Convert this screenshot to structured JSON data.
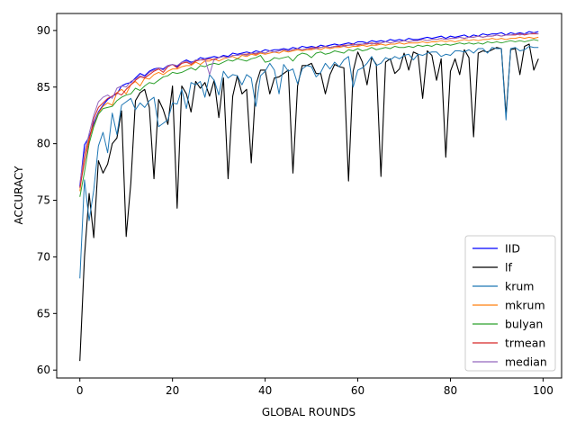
{
  "chart_data": {
    "type": "line",
    "xlabel": "GLOBAL ROUNDS",
    "ylabel": "ACCURACY",
    "xlim": [
      -5,
      104
    ],
    "ylim": [
      59.3,
      91.5
    ],
    "xticks": [
      0,
      20,
      40,
      60,
      80,
      100
    ],
    "yticks": [
      60,
      65,
      70,
      75,
      80,
      85,
      90
    ],
    "grid": false,
    "legend_position": "lower-right",
    "series": [
      {
        "name": "IID",
        "color": "#0000ff",
        "width": 1.1,
        "values": [
          76.2,
          79.9,
          80.6,
          81.8,
          82.8,
          83.4,
          83.9,
          84.2,
          84.4,
          85.1,
          85.3,
          85.4,
          85.8,
          86.2,
          86.0,
          86.4,
          86.6,
          86.7,
          86.6,
          86.9,
          87.0,
          86.8,
          87.2,
          87.4,
          87.2,
          87.3,
          87.6,
          87.5,
          87.6,
          87.7,
          87.6,
          87.8,
          87.7,
          88.0,
          87.9,
          88.0,
          88.1,
          88.0,
          88.2,
          88.1,
          88.3,
          88.2,
          88.3,
          88.3,
          88.4,
          88.3,
          88.5,
          88.4,
          88.6,
          88.5,
          88.6,
          88.5,
          88.7,
          88.6,
          88.7,
          88.8,
          88.7,
          88.8,
          88.9,
          88.8,
          89.0,
          89.0,
          88.9,
          89.1,
          89.0,
          89.1,
          89.0,
          89.2,
          89.1,
          89.2,
          89.1,
          89.3,
          89.2,
          89.2,
          89.3,
          89.4,
          89.3,
          89.4,
          89.5,
          89.3,
          89.5,
          89.4,
          89.5,
          89.6,
          89.4,
          89.6,
          89.5,
          89.7,
          89.6,
          89.7,
          89.7,
          89.8,
          89.6,
          89.8,
          89.7,
          89.8,
          89.7,
          89.9,
          89.8,
          89.9
        ]
      },
      {
        "name": "lf",
        "color": "#000000",
        "width": 1.1,
        "values": [
          60.8,
          70.0,
          75.6,
          71.7,
          78.5,
          77.4,
          78.2,
          80.0,
          80.5,
          82.9,
          71.8,
          76.5,
          83.8,
          84.5,
          84.8,
          83.2,
          76.9,
          83.9,
          83.0,
          81.7,
          85.1,
          74.3,
          85.1,
          84.4,
          82.8,
          85.5,
          84.9,
          85.4,
          84.2,
          85.6,
          82.3,
          85.8,
          76.9,
          84.2,
          86.0,
          84.4,
          84.8,
          78.3,
          85.2,
          86.5,
          86.5,
          84.4,
          85.8,
          85.9,
          86.2,
          86.5,
          77.4,
          85.1,
          86.9,
          86.9,
          87.1,
          86.2,
          86.2,
          84.4,
          86.1,
          87.0,
          86.8,
          86.7,
          76.7,
          86.4,
          88.1,
          87.2,
          85.2,
          87.6,
          87.0,
          77.1,
          87.2,
          87.5,
          86.2,
          86.6,
          88.0,
          86.5,
          88.1,
          87.9,
          84.0,
          88.2,
          87.8,
          85.6,
          87.5,
          78.8,
          86.4,
          87.5,
          86.1,
          88.3,
          87.6,
          80.6,
          88.0,
          88.2,
          88.1,
          88.3,
          88.5,
          88.4,
          82.5,
          88.3,
          88.4,
          86.1,
          88.6,
          88.8,
          86.5,
          87.5
        ]
      },
      {
        "name": "krum",
        "color": "#1f77b4",
        "width": 1.0,
        "values": [
          68.1,
          76.8,
          73.2,
          75.9,
          79.8,
          81.0,
          79.2,
          82.7,
          80.8,
          83.4,
          83.7,
          84.0,
          83.0,
          83.6,
          83.2,
          83.8,
          84.1,
          81.5,
          81.8,
          82.1,
          83.6,
          83.5,
          84.8,
          83.1,
          85.4,
          85.2,
          85.5,
          84.1,
          86.1,
          85.6,
          84.3,
          86.4,
          85.8,
          86.1,
          86.0,
          85.2,
          86.1,
          85.8,
          83.3,
          86.0,
          86.4,
          87.1,
          86.5,
          84.4,
          87.0,
          86.4,
          86.6,
          85.3,
          86.6,
          86.9,
          86.8,
          85.9,
          86.3,
          87.1,
          86.6,
          87.2,
          86.8,
          87.4,
          87.7,
          85.0,
          86.5,
          86.7,
          87.1,
          87.7,
          86.9,
          87.1,
          87.6,
          87.4,
          87.7,
          87.5,
          87.8,
          87.9,
          87.4,
          87.9,
          87.8,
          88.0,
          88.1,
          88.1,
          87.7,
          87.9,
          87.8,
          88.2,
          88.2,
          88.1,
          88.3,
          88.0,
          88.4,
          88.4,
          88.0,
          88.5,
          88.4,
          88.4,
          82.1,
          88.4,
          88.5,
          88.2,
          88.3,
          88.6,
          88.5,
          88.5
        ]
      },
      {
        "name": "mkrum",
        "color": "#ff7f0e",
        "width": 1.0,
        "values": [
          75.8,
          79.0,
          80.5,
          81.6,
          82.7,
          83.3,
          83.6,
          83.4,
          84.5,
          84.8,
          84.4,
          85.2,
          85.5,
          85.1,
          85.8,
          85.7,
          86.1,
          86.3,
          86.1,
          86.4,
          86.6,
          86.6,
          86.8,
          86.9,
          86.9,
          87.2,
          87.0,
          87.3,
          87.3,
          87.5,
          87.3,
          87.5,
          87.6,
          87.7,
          87.5,
          87.8,
          87.7,
          87.9,
          87.8,
          88.0,
          87.9,
          88.0,
          88.1,
          88.0,
          88.2,
          88.1,
          88.2,
          88.3,
          88.2,
          88.3,
          88.3,
          88.4,
          88.3,
          88.5,
          88.4,
          88.5,
          88.5,
          88.6,
          88.5,
          88.6,
          88.6,
          88.7,
          88.6,
          88.7,
          88.7,
          88.8,
          88.7,
          88.8,
          88.8,
          88.9,
          88.8,
          88.9,
          88.9,
          88.9,
          89.0,
          88.9,
          89.0,
          89.0,
          89.1,
          89.0,
          89.1,
          89.0,
          89.1,
          89.2,
          89.1,
          89.2,
          89.1,
          89.2,
          89.2,
          89.3,
          89.2,
          89.3,
          89.2,
          89.3,
          89.3,
          89.4,
          89.3,
          89.4,
          89.3,
          89.4
        ]
      },
      {
        "name": "bulyan",
        "color": "#2ca02c",
        "width": 1.0,
        "values": [
          75.3,
          77.5,
          80.0,
          81.5,
          82.6,
          83.1,
          83.2,
          83.3,
          83.8,
          84.1,
          84.3,
          84.4,
          84.9,
          84.7,
          85.1,
          85.4,
          85.3,
          85.6,
          85.9,
          86.0,
          86.3,
          86.2,
          86.3,
          86.5,
          86.7,
          86.5,
          86.9,
          86.8,
          87.0,
          87.1,
          87.0,
          87.2,
          87.4,
          87.3,
          87.5,
          87.4,
          87.3,
          87.5,
          87.6,
          87.8,
          87.2,
          87.3,
          87.6,
          87.5,
          87.6,
          87.7,
          87.3,
          87.8,
          88.0,
          87.9,
          87.6,
          88.0,
          88.1,
          87.9,
          88.0,
          88.2,
          88.1,
          88.0,
          88.3,
          88.2,
          88.4,
          88.2,
          88.3,
          88.5,
          88.3,
          88.4,
          88.5,
          88.4,
          88.6,
          88.5,
          88.5,
          88.6,
          88.5,
          88.7,
          88.6,
          88.7,
          88.6,
          88.8,
          88.7,
          88.8,
          88.7,
          88.8,
          88.9,
          88.8,
          88.9,
          88.8,
          88.9,
          88.8,
          89.0,
          88.9,
          89.0,
          88.9,
          89.0,
          89.1,
          89.0,
          89.1,
          89.0,
          89.1,
          89.2,
          89.1
        ]
      },
      {
        "name": "trmean",
        "color": "#d62728",
        "width": 1.0,
        "values": [
          76.1,
          78.4,
          80.3,
          82.2,
          83.2,
          83.6,
          84.0,
          84.2,
          84.5,
          84.3,
          84.8,
          85.2,
          85.6,
          85.9,
          85.8,
          86.1,
          86.4,
          86.6,
          86.3,
          86.8,
          87.0,
          86.7,
          87.1,
          87.2,
          87.0,
          87.3,
          87.4,
          87.4,
          87.5,
          87.4,
          87.6,
          87.7,
          87.6,
          87.8,
          87.8,
          87.9,
          87.9,
          88.0,
          87.9,
          88.1,
          88.0,
          88.2,
          88.1,
          88.2,
          88.3,
          88.2,
          88.3,
          88.4,
          88.3,
          88.4,
          88.4,
          88.5,
          88.5,
          88.6,
          88.5,
          88.6,
          88.6,
          88.7,
          88.7,
          88.8,
          88.7,
          88.8,
          88.8,
          88.9,
          88.8,
          88.9,
          89.0,
          88.9,
          89.0,
          89.0,
          89.1,
          89.0,
          89.1,
          89.1,
          89.2,
          89.1,
          89.2,
          89.2,
          89.3,
          89.2,
          89.3,
          89.3,
          89.4,
          89.3,
          89.4,
          89.4,
          89.5,
          89.4,
          89.5,
          89.5,
          89.6,
          89.5,
          89.6,
          89.6,
          89.6,
          89.7,
          89.6,
          89.7,
          89.7,
          89.7
        ]
      },
      {
        "name": "median",
        "color": "#9467bd",
        "width": 1.0,
        "values": [
          76.5,
          79.2,
          80.9,
          82.5,
          83.7,
          84.1,
          84.3,
          84.0,
          84.9,
          85.1,
          85.0,
          85.5,
          85.7,
          86.0,
          85.9,
          86.3,
          86.5,
          86.7,
          86.5,
          86.9,
          87.0,
          86.9,
          87.2,
          87.3,
          87.1,
          87.4,
          87.4,
          87.5,
          86.1,
          87.5,
          87.6,
          87.7,
          87.6,
          87.8,
          87.8,
          87.9,
          87.8,
          88.0,
          88.0,
          88.1,
          88.0,
          88.2,
          88.1,
          88.2,
          88.3,
          88.2,
          88.3,
          88.4,
          88.3,
          88.4,
          88.5,
          88.4,
          88.5,
          88.6,
          88.5,
          88.6,
          88.7,
          88.6,
          88.7,
          88.7,
          88.8,
          88.8,
          88.9,
          88.8,
          88.9,
          88.9,
          89.0,
          88.9,
          89.0,
          89.0,
          89.1,
          89.0,
          89.1,
          89.1,
          89.2,
          89.1,
          89.2,
          89.2,
          89.3,
          89.2,
          89.3,
          89.3,
          89.4,
          89.3,
          89.4,
          89.4,
          89.5,
          89.4,
          89.5,
          89.5,
          89.6,
          89.5,
          89.6,
          89.6,
          89.7,
          89.6,
          89.7,
          89.7,
          89.8,
          89.7
        ]
      }
    ]
  }
}
